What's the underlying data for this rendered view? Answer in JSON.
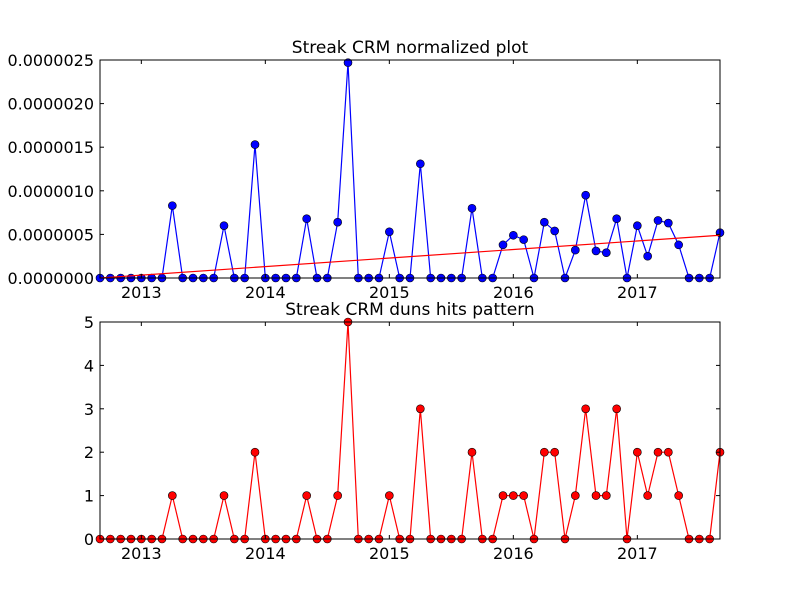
{
  "chart_data": [
    {
      "type": "line",
      "title": "Streak CRM normalized plot",
      "xlabel": "",
      "ylabel": "",
      "ylim": [
        0,
        2.5e-06
      ],
      "y_ticks": [
        0,
        5e-07,
        1e-06,
        1.5e-06,
        2e-06,
        2.5e-06
      ],
      "y_tick_labels": [
        "0.0000000",
        "0.0000005",
        "0.0000010",
        "0.0000015",
        "0.0000020",
        "0.0000025"
      ],
      "x_tick_labels": [
        "2013",
        "2014",
        "2015",
        "2016",
        "2017"
      ],
      "x": [
        "2012-09",
        "2012-10",
        "2012-11",
        "2012-12",
        "2013-01",
        "2013-02",
        "2013-03",
        "2013-04",
        "2013-05",
        "2013-06",
        "2013-07",
        "2013-08",
        "2013-09",
        "2013-10",
        "2013-11",
        "2013-12",
        "2014-01",
        "2014-02",
        "2014-03",
        "2014-04",
        "2014-05",
        "2014-06",
        "2014-07",
        "2014-08",
        "2014-09",
        "2014-10",
        "2014-11",
        "2014-12",
        "2015-01",
        "2015-02",
        "2015-03",
        "2015-04",
        "2015-05",
        "2015-06",
        "2015-07",
        "2015-08",
        "2015-09",
        "2015-10",
        "2015-11",
        "2015-12",
        "2016-01",
        "2016-02",
        "2016-03",
        "2016-04",
        "2016-05",
        "2016-06",
        "2016-07",
        "2016-08",
        "2016-09",
        "2016-10",
        "2016-11",
        "2016-12",
        "2017-01",
        "2017-02",
        "2017-03",
        "2017-04",
        "2017-05",
        "2017-06",
        "2017-07",
        "2017-08",
        "2017-09"
      ],
      "series": [
        {
          "color": "#0000ff",
          "marker": "circle",
          "values": [
            0,
            0,
            0,
            0,
            0,
            0,
            0,
            8.3e-07,
            0,
            0,
            0,
            0,
            6e-07,
            0,
            0,
            1.53e-06,
            0,
            0,
            0,
            0,
            6.8e-07,
            0,
            0,
            6.4e-07,
            2.47e-06,
            0,
            0,
            0,
            5.3e-07,
            0,
            0,
            1.31e-06,
            0,
            0,
            0,
            0,
            8e-07,
            0,
            0,
            3.8e-07,
            4.9e-07,
            4.4e-07,
            0,
            6.4e-07,
            5.4e-07,
            0,
            3.2e-07,
            9.5e-07,
            3.1e-07,
            2.9e-07,
            6.8e-07,
            0,
            6e-07,
            2.5e-07,
            6.6e-07,
            6.3e-07,
            3.8e-07,
            0,
            0,
            0,
            5.2e-07
          ]
        },
        {
          "color": "#ff0000",
          "marker": "none",
          "line_start": [
            "2012-09",
            0
          ],
          "line_end": [
            "2017-09",
            4.9e-07
          ]
        }
      ]
    },
    {
      "type": "line",
      "title": "Streak CRM duns hits pattern",
      "xlabel": "",
      "ylabel": "",
      "ylim": [
        0,
        5
      ],
      "y_ticks": [
        0,
        1,
        2,
        3,
        4,
        5
      ],
      "y_tick_labels": [
        "0",
        "1",
        "2",
        "3",
        "4",
        "5"
      ],
      "x_tick_labels": [
        "2013",
        "2014",
        "2015",
        "2016",
        "2017"
      ],
      "x": [
        "2012-09",
        "2012-10",
        "2012-11",
        "2012-12",
        "2013-01",
        "2013-02",
        "2013-03",
        "2013-04",
        "2013-05",
        "2013-06",
        "2013-07",
        "2013-08",
        "2013-09",
        "2013-10",
        "2013-11",
        "2013-12",
        "2014-01",
        "2014-02",
        "2014-03",
        "2014-04",
        "2014-05",
        "2014-06",
        "2014-07",
        "2014-08",
        "2014-09",
        "2014-10",
        "2014-11",
        "2014-12",
        "2015-01",
        "2015-02",
        "2015-03",
        "2015-04",
        "2015-05",
        "2015-06",
        "2015-07",
        "2015-08",
        "2015-09",
        "2015-10",
        "2015-11",
        "2015-12",
        "2016-01",
        "2016-02",
        "2016-03",
        "2016-04",
        "2016-05",
        "2016-06",
        "2016-07",
        "2016-08",
        "2016-09",
        "2016-10",
        "2016-11",
        "2016-12",
        "2017-01",
        "2017-02",
        "2017-03",
        "2017-04",
        "2017-05",
        "2017-06",
        "2017-07",
        "2017-08",
        "2017-09"
      ],
      "series": [
        {
          "color": "#ff0000",
          "marker": "circle",
          "values": [
            0,
            0,
            0,
            0,
            0,
            0,
            0,
            1,
            0,
            0,
            0,
            0,
            1,
            0,
            0,
            2,
            0,
            0,
            0,
            0,
            1,
            0,
            0,
            1,
            5,
            0,
            0,
            0,
            1,
            0,
            0,
            3,
            0,
            0,
            0,
            0,
            2,
            0,
            0,
            1,
            1,
            1,
            0,
            2,
            2,
            0,
            1,
            3,
            1,
            1,
            3,
            0,
            2,
            1,
            2,
            2,
            1,
            0,
            0,
            0,
            2
          ]
        }
      ]
    }
  ]
}
